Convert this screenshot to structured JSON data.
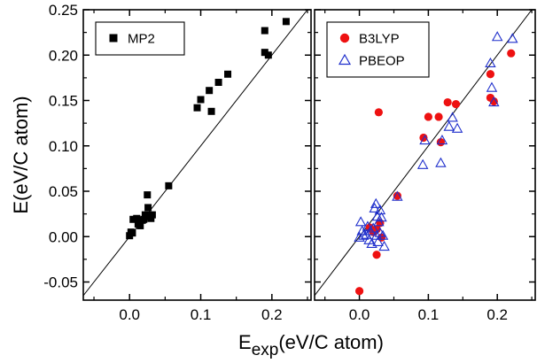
{
  "chart_data": [
    {
      "type": "scatter",
      "panel": "left",
      "xlabel": "",
      "ylabel": "E(eV/C atom)",
      "xlim": [
        -0.065,
        0.255
      ],
      "ylim": [
        -0.07,
        0.25
      ],
      "x_ticks": [
        0.0,
        0.1,
        0.2
      ],
      "x_tick_labels": [
        "0.0",
        "0.1",
        "0.2"
      ],
      "y_ticks": [
        -0.05,
        0.0,
        0.05,
        0.1,
        0.15,
        0.2,
        0.25
      ],
      "y_tick_labels": [
        "-0.05",
        "0.00",
        "0.05",
        "0.10",
        "0.15",
        "0.20",
        "0.25"
      ],
      "grid": false,
      "legend_position": "top-left",
      "diagonal": "y = x",
      "series": [
        {
          "name": "MP2",
          "marker": "filled-square",
          "color": "#000000",
          "points": [
            [
              0.0,
              0.001
            ],
            [
              0.002,
              0.005
            ],
            [
              0.004,
              0.004
            ],
            [
              0.005,
              0.019
            ],
            [
              0.01,
              0.02
            ],
            [
              0.012,
              0.014
            ],
            [
              0.015,
              0.012
            ],
            [
              0.018,
              0.018
            ],
            [
              0.02,
              0.019
            ],
            [
              0.022,
              0.024
            ],
            [
              0.025,
              0.046
            ],
            [
              0.026,
              0.032
            ],
            [
              0.028,
              0.022
            ],
            [
              0.03,
              0.02
            ],
            [
              0.032,
              0.024
            ],
            [
              0.055,
              0.056
            ],
            [
              0.095,
              0.142
            ],
            [
              0.1,
              0.151
            ],
            [
              0.112,
              0.161
            ],
            [
              0.115,
              0.138
            ],
            [
              0.125,
              0.17
            ],
            [
              0.138,
              0.179
            ],
            [
              0.19,
              0.227
            ],
            [
              0.19,
              0.203
            ],
            [
              0.195,
              0.2
            ],
            [
              0.22,
              0.237
            ]
          ]
        }
      ]
    },
    {
      "type": "scatter",
      "panel": "right",
      "xlabel": "E_exp(eV/C atom)",
      "ylabel": "",
      "xlim": [
        -0.065,
        0.255
      ],
      "ylim": [
        -0.07,
        0.25
      ],
      "x_ticks": [
        0.0,
        0.1,
        0.2
      ],
      "x_tick_labels": [
        "0.0",
        "0.1",
        "0.2"
      ],
      "grid": false,
      "legend_position": "top-left",
      "diagonal": "y = x",
      "series": [
        {
          "name": "B3LYP",
          "marker": "filled-circle",
          "color": "#ee1111",
          "points": [
            [
              0.0,
              -0.06
            ],
            [
              0.025,
              -0.02
            ],
            [
              0.028,
              0.137
            ],
            [
              0.03,
              0.015
            ],
            [
              0.032,
              -0.001
            ],
            [
              0.025,
              0.008
            ],
            [
              0.02,
              0.005
            ],
            [
              0.015,
              0.01
            ],
            [
              0.055,
              0.045
            ],
            [
              0.093,
              0.109
            ],
            [
              0.1,
              0.132
            ],
            [
              0.115,
              0.132
            ],
            [
              0.118,
              0.104
            ],
            [
              0.128,
              0.148
            ],
            [
              0.14,
              0.146
            ],
            [
              0.19,
              0.179
            ],
            [
              0.19,
              0.153
            ],
            [
              0.195,
              0.149
            ],
            [
              0.22,
              0.202
            ]
          ]
        },
        {
          "name": "PBEOP",
          "marker": "open-triangle",
          "color": "#1f2fcc",
          "points": [
            [
              0.0,
              -0.001
            ],
            [
              0.002,
              0.016
            ],
            [
              0.004,
              0.006
            ],
            [
              0.006,
              0.001
            ],
            [
              0.01,
              0.002
            ],
            [
              0.012,
              0.011
            ],
            [
              0.014,
              -0.004
            ],
            [
              0.016,
              0.006
            ],
            [
              0.018,
              -0.008
            ],
            [
              0.02,
              0.009
            ],
            [
              0.022,
              0.031
            ],
            [
              0.024,
              0.036
            ],
            [
              0.025,
              0.001
            ],
            [
              0.026,
              0.022
            ],
            [
              0.027,
              -0.006
            ],
            [
              0.028,
              0.016
            ],
            [
              0.03,
              0.029
            ],
            [
              0.032,
              0.021
            ],
            [
              0.034,
              0.001
            ],
            [
              0.036,
              -0.011
            ],
            [
              0.03,
              0.004
            ],
            [
              0.055,
              0.044
            ],
            [
              0.092,
              0.079
            ],
            [
              0.095,
              0.106
            ],
            [
              0.118,
              0.081
            ],
            [
              0.12,
              0.106
            ],
            [
              0.13,
              0.121
            ],
            [
              0.135,
              0.131
            ],
            [
              0.142,
              0.119
            ],
            [
              0.19,
              0.191
            ],
            [
              0.192,
              0.164
            ],
            [
              0.195,
              0.148
            ],
            [
              0.2,
              0.22
            ],
            [
              0.222,
              0.218
            ]
          ]
        }
      ]
    }
  ]
}
